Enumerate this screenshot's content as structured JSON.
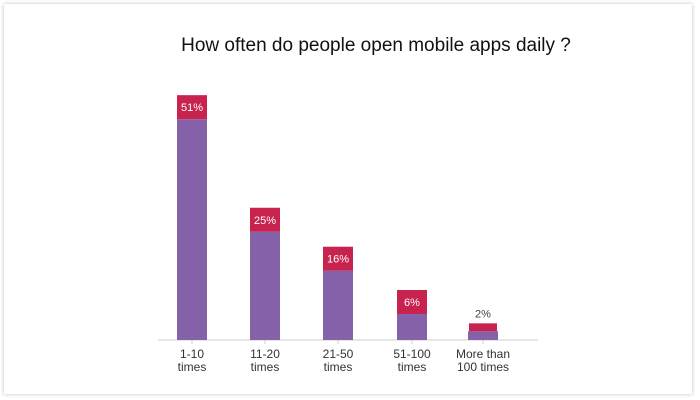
{
  "chart_data": {
    "type": "bar",
    "title": "How often do people open mobile apps daily ?",
    "categories": [
      [
        "1-10",
        "times"
      ],
      [
        "11-20",
        "times"
      ],
      [
        "21-50",
        "times"
      ],
      [
        "51-100",
        "times"
      ],
      [
        "More than",
        "100 times"
      ]
    ],
    "values": [
      51,
      25,
      16,
      6,
      2
    ],
    "value_labels": [
      "51%",
      "25%",
      "16%",
      "6%",
      "2%"
    ],
    "unit": "%",
    "xlabel": "",
    "ylabel": "",
    "grid": false,
    "legend": "none",
    "colors": {
      "bar": "#8561aa",
      "label_box": "#c8234e",
      "label_text_on_box": "#ffffff",
      "label_text_outside": "#444444",
      "axis": "#cccccc",
      "title": "#111111",
      "tick_text": "#333333"
    }
  }
}
